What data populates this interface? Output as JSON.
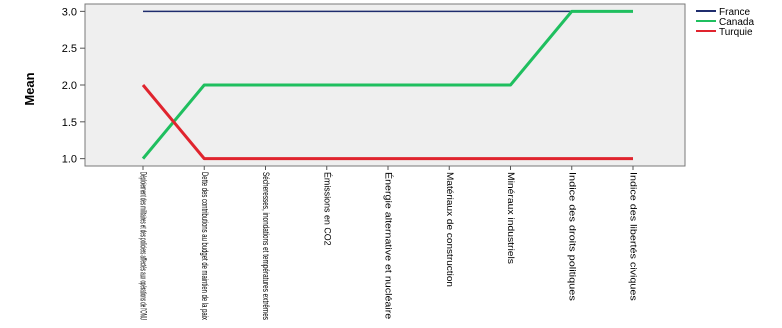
{
  "chart_data": {
    "type": "line",
    "ylabel": "Mean",
    "xlabel": "",
    "ylim": [
      0.9,
      3.1
    ],
    "yticks": [
      "1.0",
      "1.5",
      "2.0",
      "2.5",
      "3.0"
    ],
    "categories": [
      "Déploiement des militaires et des policiers affectés aux opérations de l'ONU",
      "Dette des contributions au budget de maintien de la paix",
      "Sécheresses, inondations et températures extrêmes",
      "Émissions en CO2",
      "Énergie alternative et nucléaire",
      "Matériaux de construction",
      "Minéraux industriels",
      "Indice des droits politiques",
      "Indice des libertés civiques"
    ],
    "series": [
      {
        "name": "France",
        "color": "#1f2d6e",
        "values": [
          3,
          3,
          3,
          3,
          3,
          3,
          3,
          3,
          3
        ]
      },
      {
        "name": "Canada",
        "color": "#1fbf5f",
        "values": [
          1,
          2,
          2,
          2,
          2,
          2,
          2,
          3,
          3
        ]
      },
      {
        "name": "Turquie",
        "color": "#e0242e",
        "values": [
          2,
          1,
          1,
          1,
          1,
          1,
          1,
          1,
          1
        ]
      }
    ],
    "grid": false,
    "legend": "top-right"
  }
}
